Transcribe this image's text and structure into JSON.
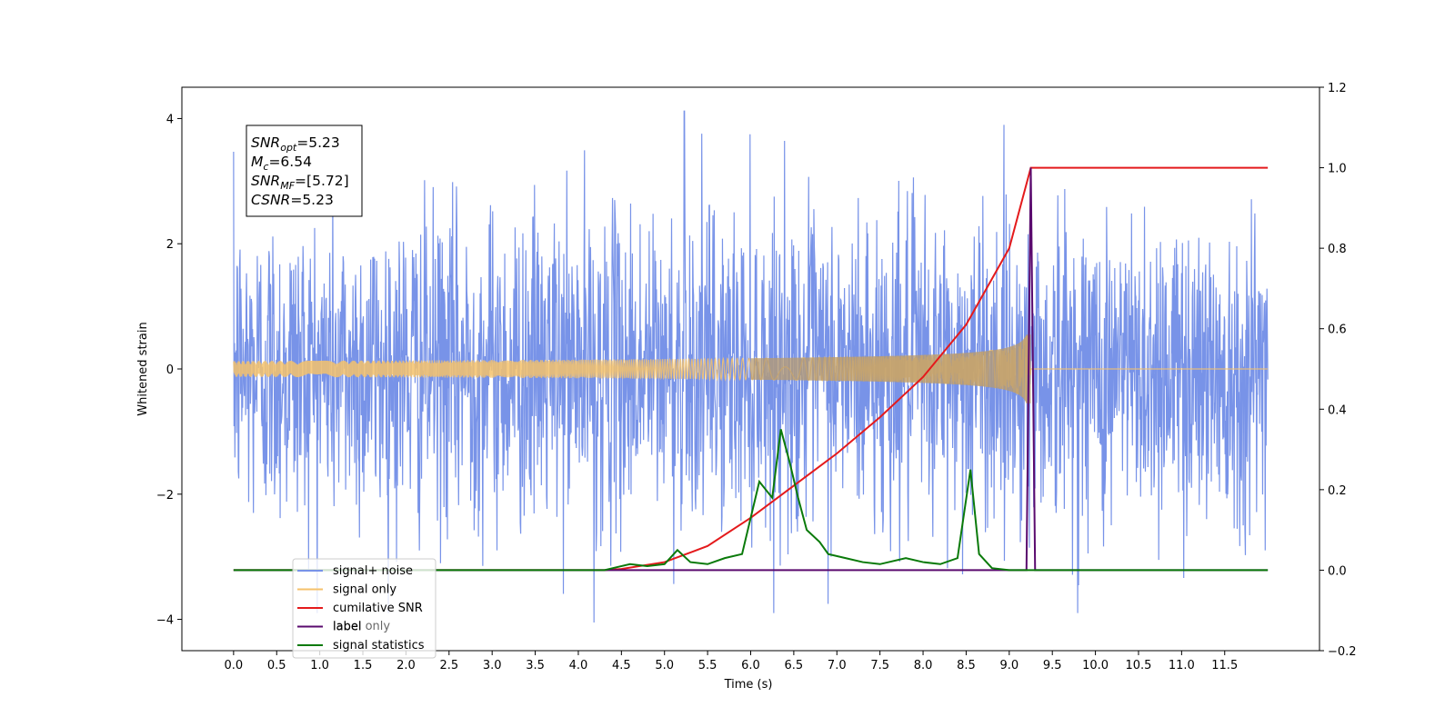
{
  "chart_data": {
    "type": "line",
    "xlabel": "Time (s)",
    "ylabel": "Whitened strain",
    "ylabel_right": "",
    "xlim": [
      -0.6,
      12.6
    ],
    "ylim": [
      -4.5,
      4.5
    ],
    "ylim_right": [
      -0.2,
      1.2
    ],
    "x_ticks": [
      "0.0",
      "0.5",
      "1.0",
      "1.5",
      "2.0",
      "2.5",
      "3.0",
      "3.5",
      "4.0",
      "4.5",
      "5.0",
      "5.5",
      "6.0",
      "6.5",
      "7.0",
      "7.5",
      "8.0",
      "8.5",
      "9.0",
      "9.5",
      "10.0",
      "10.5",
      "11.0",
      "11.5"
    ],
    "y_ticks_left": [
      "−4",
      "−2",
      "0",
      "2",
      "4"
    ],
    "y_ticks_right": [
      "−0.2",
      "0.0",
      "0.2",
      "0.4",
      "0.6",
      "0.8",
      "1.0",
      "1.2"
    ],
    "grid": false,
    "legend_position": "lower-left",
    "annotation": [
      {
        "base": "SNR",
        "sub": "opt",
        "value": "=5.23"
      },
      {
        "base": "M",
        "sub": "c",
        "value": "=6.54"
      },
      {
        "base": "SNR",
        "sub": "MF",
        "value": "=[5.72]"
      },
      {
        "base": "CSNR",
        "sub": "",
        "value": "=5.23"
      }
    ],
    "series": [
      {
        "name": "signal+ noise",
        "axis": "left",
        "color": "#7893e8",
        "description": "whitened noise with injected signal, spanning roughly -2.5 to 2.5 with spikes up to about ±4",
        "envelope_max": 4.12,
        "envelope_min": -4.05,
        "x_range": [
          0,
          12.0
        ]
      },
      {
        "name": "signal only",
        "axis": "left",
        "color": "#f5c26b",
        "chirp_end": 9.25,
        "peak_amplitude": 0.55,
        "x_range": [
          0,
          12.0
        ]
      },
      {
        "name": "cumilative SNR",
        "axis": "right",
        "color": "#e41a1c",
        "x": [
          0.0,
          4.3,
          4.5,
          5.0,
          5.5,
          6.0,
          6.5,
          7.0,
          7.5,
          8.0,
          8.5,
          9.0,
          9.25,
          9.3,
          12.0
        ],
        "values": [
          0.0,
          0.0,
          0.003,
          0.02,
          0.06,
          0.13,
          0.21,
          0.29,
          0.38,
          0.48,
          0.61,
          0.8,
          1.0,
          1.0,
          1.0
        ]
      },
      {
        "name": "label",
        "axis": "right",
        "color": "#5a0a6e",
        "x": [
          0.0,
          9.2,
          9.25,
          9.3,
          12.0
        ],
        "values": [
          0.0,
          0.0,
          1.0,
          0.0,
          0.0
        ]
      },
      {
        "name": "label only",
        "hidden_behind_legend": true,
        "color": "#ffffff"
      },
      {
        "name": "signal statistics",
        "axis": "right",
        "color": "#0a7a0a",
        "x": [
          0.0,
          4.3,
          4.4,
          4.6,
          4.8,
          5.0,
          5.15,
          5.3,
          5.5,
          5.7,
          5.9,
          6.1,
          6.25,
          6.35,
          6.45,
          6.55,
          6.65,
          6.8,
          6.9,
          7.1,
          7.3,
          7.5,
          7.8,
          8.0,
          8.2,
          8.4,
          8.55,
          8.65,
          8.8,
          9.0,
          9.3,
          12.0
        ],
        "values": [
          0.0,
          0.0,
          0.005,
          0.015,
          0.01,
          0.015,
          0.05,
          0.02,
          0.015,
          0.03,
          0.04,
          0.22,
          0.18,
          0.35,
          0.27,
          0.18,
          0.1,
          0.07,
          0.04,
          0.03,
          0.02,
          0.015,
          0.03,
          0.02,
          0.015,
          0.03,
          0.25,
          0.04,
          0.005,
          0.0,
          0.0,
          0.0
        ]
      }
    ],
    "legend_entries": [
      {
        "label": "signal+ noise",
        "color": "#7893e8"
      },
      {
        "label": "signal only",
        "color": "#f5c26b"
      },
      {
        "label": "cumilative SNR",
        "color": "#e41a1c"
      },
      {
        "label": "label",
        "color": "#5a0a6e"
      },
      {
        "label": "signal statistics",
        "color": "#0a7a0a"
      }
    ]
  }
}
